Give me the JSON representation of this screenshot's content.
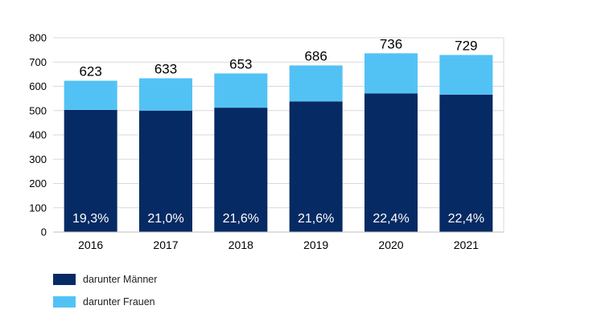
{
  "chart_data": {
    "type": "bar",
    "stacked": true,
    "categories": [
      "2016",
      "2017",
      "2018",
      "2019",
      "2020",
      "2021"
    ],
    "totals": [
      623,
      633,
      653,
      686,
      736,
      729
    ],
    "series": [
      {
        "name": "darunter Männer",
        "color": "#062a63",
        "values": [
          503,
          500,
          512,
          538,
          571,
          566
        ]
      },
      {
        "name": "darunter Frauen",
        "color": "#52c2f5",
        "values": [
          120,
          133,
          141,
          148,
          165,
          163
        ]
      }
    ],
    "share_labels": [
      "19,3%",
      "21,0%",
      "21,6%",
      "21,6%",
      "22,4%",
      "22,4%"
    ],
    "yticks": [
      0,
      100,
      200,
      300,
      400,
      500,
      600,
      700,
      800
    ],
    "ylim": [
      0,
      800
    ],
    "grid": true,
    "legend_position": "bottom-left"
  }
}
